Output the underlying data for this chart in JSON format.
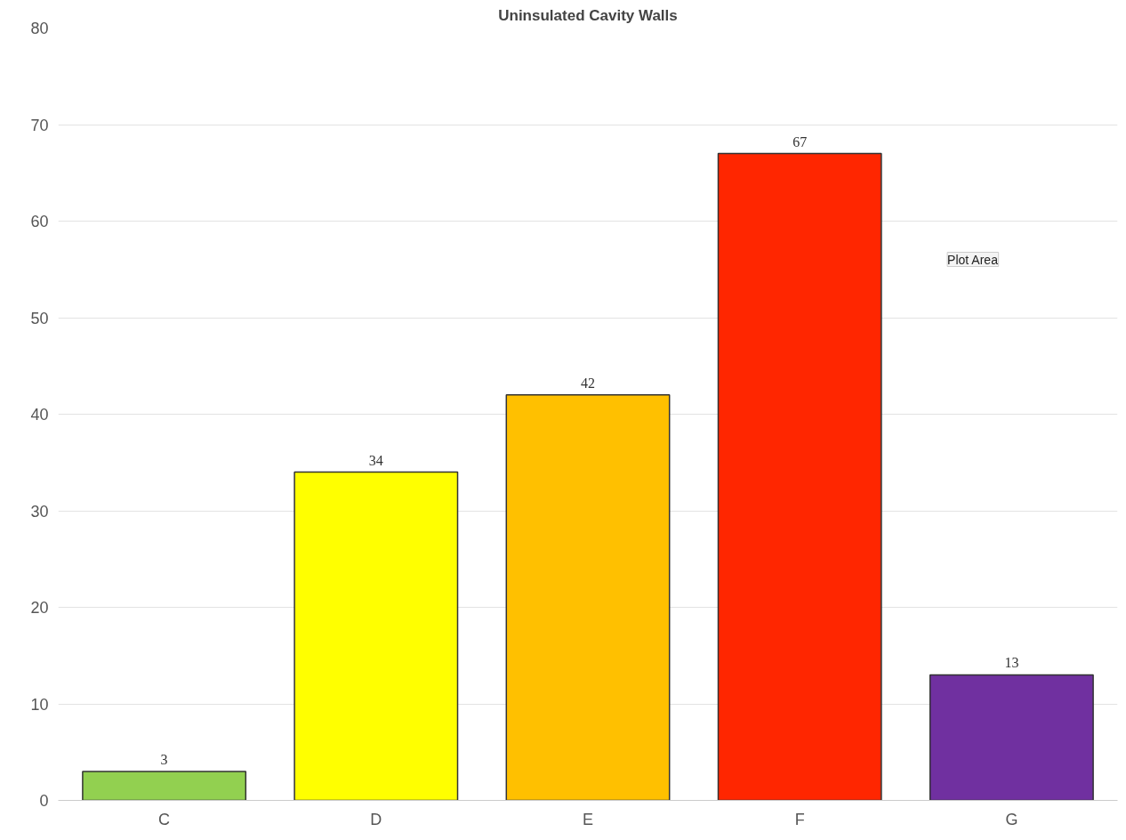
{
  "chart_data": {
    "type": "bar",
    "title": "Uninsulated Cavity Walls",
    "categories": [
      "C",
      "D",
      "E",
      "F",
      "G"
    ],
    "values": [
      3,
      34,
      42,
      67,
      13
    ],
    "colors": [
      "#92d050",
      "#ffff00",
      "#ffc000",
      "#ff2600",
      "#7030a0"
    ],
    "ylim": [
      0,
      80
    ],
    "yticks": [
      0,
      10,
      20,
      30,
      40,
      50,
      60,
      70,
      80
    ],
    "grid": "y",
    "data_labels": true,
    "annotations": [
      "Plot Area"
    ]
  }
}
